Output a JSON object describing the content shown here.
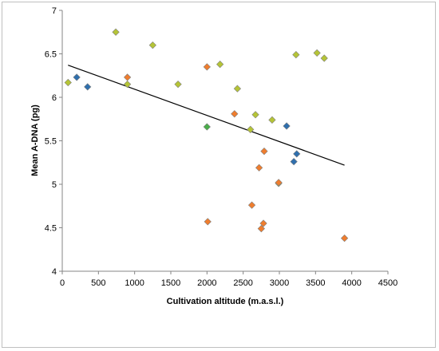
{
  "chart_data": {
    "type": "scatter",
    "xlabel": "Cultivation altitude (m.a.s.l.)",
    "ylabel": "Mean A-DNA (pg)",
    "xlim": [
      0,
      4500
    ],
    "ylim": [
      4,
      7
    ],
    "xticks": [
      0,
      500,
      1000,
      1500,
      2000,
      2500,
      3000,
      3500,
      4000,
      4500
    ],
    "yticks": [
      4,
      4.5,
      5,
      5.5,
      6,
      6.5,
      7
    ],
    "tick_labels_x": [
      "0",
      "500",
      "1000",
      "1500",
      "2000",
      "2500",
      "3000",
      "3500",
      "4000",
      "4500"
    ],
    "tick_labels_y": [
      "4",
      "4.5",
      "5",
      "5.5",
      "6",
      "6.5",
      "7"
    ],
    "grid": false,
    "legend": false,
    "series": [
      {
        "color": "#b5c436",
        "marker": "diamond",
        "points": [
          [
            80,
            6.17
          ],
          [
            740,
            6.75
          ],
          [
            900,
            6.15
          ],
          [
            1250,
            6.6
          ],
          [
            1600,
            6.15
          ],
          [
            2180,
            6.38
          ],
          [
            2420,
            6.1
          ],
          [
            2600,
            5.63
          ],
          [
            2670,
            5.8
          ],
          [
            2900,
            5.74
          ],
          [
            2990,
            5.01
          ],
          [
            3230,
            6.49
          ],
          [
            3520,
            6.51
          ],
          [
            3620,
            6.45
          ]
        ]
      },
      {
        "color": "#ef7d2e",
        "marker": "diamond",
        "points": [
          [
            900,
            6.23
          ],
          [
            2000,
            6.35
          ],
          [
            2010,
            4.57
          ],
          [
            2380,
            5.81
          ],
          [
            2620,
            4.76
          ],
          [
            2720,
            5.19
          ],
          [
            2750,
            4.49
          ],
          [
            2780,
            4.55
          ],
          [
            2790,
            5.38
          ],
          [
            2990,
            5.02
          ],
          [
            3900,
            4.38
          ]
        ]
      },
      {
        "color": "#2f6fad",
        "marker": "diamond",
        "points": [
          [
            200,
            6.23
          ],
          [
            350,
            6.12
          ],
          [
            3100,
            5.67
          ],
          [
            3200,
            5.26
          ],
          [
            3240,
            5.35
          ]
        ]
      },
      {
        "color": "#4aae4a",
        "marker": "diamond",
        "points": [
          [
            2000,
            5.66
          ]
        ]
      }
    ],
    "trendline": {
      "x": [
        80,
        3900
      ],
      "y": [
        6.37,
        5.22
      ],
      "color": "#000000"
    }
  }
}
